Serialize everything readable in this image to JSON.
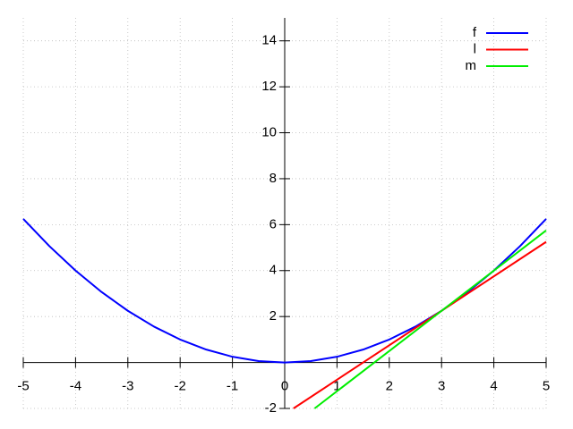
{
  "chart_data": {
    "type": "line",
    "xlim": [
      -5,
      5
    ],
    "ylim": [
      -2,
      15
    ],
    "xticks": [
      -5,
      -4,
      -3,
      -2,
      -1,
      0,
      1,
      2,
      3,
      4,
      5
    ],
    "yticks": [
      -2,
      2,
      4,
      6,
      8,
      10,
      12,
      14
    ],
    "grid": true,
    "legend": "top-right",
    "series": [
      {
        "name": "f",
        "color": "#0000ff",
        "x": [
          -5,
          -4.5,
          -4,
          -3.5,
          -3,
          -2.5,
          -2,
          -1.5,
          -1,
          -0.5,
          0,
          0.5,
          1,
          1.5,
          2,
          2.5,
          3,
          3.5,
          4,
          4.5,
          5
        ],
        "values": [
          6.25,
          5.0625,
          4,
          3.0625,
          2.25,
          1.5625,
          1,
          0.5625,
          0.25,
          0.0625,
          0,
          0.0625,
          0.25,
          0.5625,
          1,
          1.5625,
          2.25,
          3.0625,
          4,
          5.0625,
          6.25
        ]
      },
      {
        "name": "l",
        "color": "#ff0000",
        "x": [
          0.1667,
          5
        ],
        "values": [
          -2,
          5.25
        ]
      },
      {
        "name": "m",
        "color": "#00ee00",
        "x": [
          0.5714,
          5
        ],
        "values": [
          -2,
          5.75
        ]
      }
    ]
  }
}
